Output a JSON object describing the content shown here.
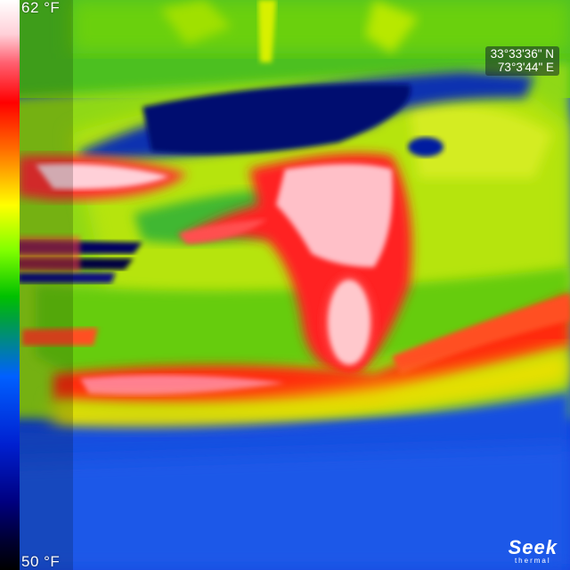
{
  "scale": {
    "max_label": "62 °F",
    "min_label": "50 °F",
    "palette": [
      "#ffffff",
      "#ff0000",
      "#ffff00",
      "#00c000",
      "#0060ff",
      "#000080",
      "#000000"
    ]
  },
  "gps": {
    "lat": "33°33'36\" N",
    "lon": "73°3'44\" E"
  },
  "brand": {
    "name": "Seek",
    "sub": "thermal"
  }
}
